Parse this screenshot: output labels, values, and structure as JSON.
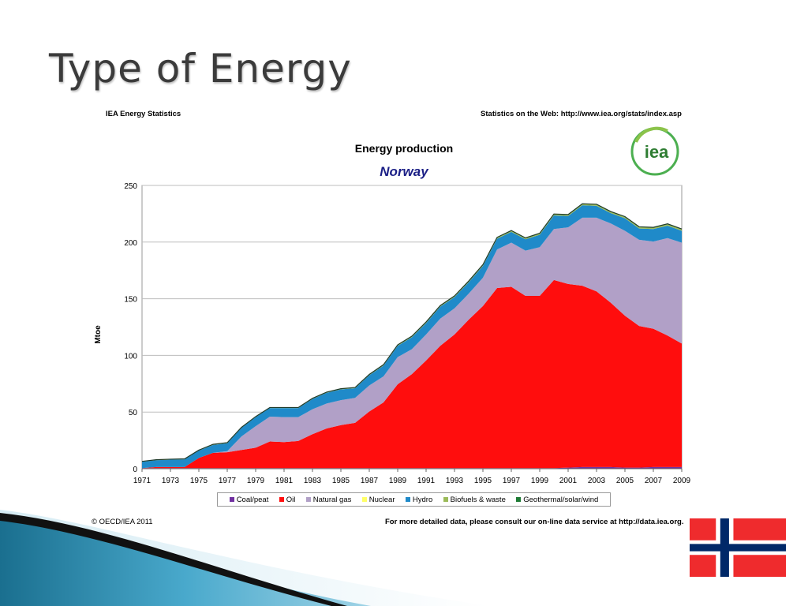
{
  "slide": {
    "title": "Type of Energy"
  },
  "header": {
    "left": "IEA Energy Statistics",
    "right": "Statistics on the Web: http://www.iea.org/stats/index.asp"
  },
  "logo": {
    "text": "iea"
  },
  "footer": {
    "left": "© OECD/IEA 2011",
    "right": "For more detailed data, please consult our on-line data service at http://data.iea.org."
  },
  "colors": {
    "coal": "#7030a0",
    "oil": "#ff0d0d",
    "gas": "#b1a0c7",
    "nuclear": "#ffff66",
    "hydro": "#1f8ac9",
    "biofuels": "#9bbb59",
    "geothermal": "#1e7b34",
    "flag_red": "#ef2b2d",
    "flag_blue": "#002868"
  },
  "chart_data": {
    "type": "area",
    "stacked": true,
    "title": "Energy production",
    "subtitle": "Norway",
    "ylabel": "Mtoe",
    "xlabel": "",
    "ylim": [
      0,
      250
    ],
    "yticks": [
      0,
      50,
      100,
      150,
      200,
      250
    ],
    "xticks": [
      "1971",
      "1973",
      "1975",
      "1977",
      "1979",
      "1981",
      "1983",
      "1985",
      "1987",
      "1989",
      "1991",
      "1993",
      "1995",
      "1997",
      "1999",
      "2001",
      "2003",
      "2005",
      "2007",
      "2009"
    ],
    "grid": true,
    "legend_position": "bottom",
    "x": [
      1971,
      1972,
      1973,
      1974,
      1975,
      1976,
      1977,
      1978,
      1979,
      1980,
      1981,
      1982,
      1983,
      1984,
      1985,
      1986,
      1987,
      1988,
      1989,
      1990,
      1991,
      1992,
      1993,
      1994,
      1995,
      1996,
      1997,
      1998,
      1999,
      2000,
      2001,
      2002,
      2003,
      2004,
      2005,
      2006,
      2007,
      2008,
      2009
    ],
    "series": [
      {
        "name": "Coal/peat",
        "color_key": "coal",
        "values": [
          0.5,
          0.5,
          0.5,
          0.5,
          0.5,
          0.5,
          0.5,
          0.5,
          0.5,
          0.5,
          0.5,
          0.5,
          0.5,
          0.5,
          0.5,
          0.5,
          0.5,
          0.5,
          0.5,
          0.5,
          0.5,
          0.5,
          0.5,
          0.5,
          0.5,
          0.5,
          0.5,
          0.5,
          0.5,
          0.5,
          1,
          1.5,
          1.5,
          1.5,
          1,
          1,
          1.5,
          1.5,
          1.5
        ]
      },
      {
        "name": "Oil",
        "color_key": "oil",
        "values": [
          0,
          1,
          1,
          1,
          9,
          13.5,
          14,
          16,
          18,
          23.5,
          23,
          24,
          30,
          35,
          38,
          40,
          50,
          58,
          74,
          83,
          95,
          108,
          118,
          131,
          143,
          159,
          160,
          152,
          152,
          166,
          162,
          160,
          155,
          145,
          134,
          125,
          122,
          116,
          109
        ]
      },
      {
        "name": "Natural gas",
        "color_key": "gas",
        "values": [
          0,
          0,
          0,
          0,
          0,
          0,
          1,
          12,
          19,
          22,
          22,
          21,
          22,
          22,
          22,
          22,
          23,
          23,
          24,
          22,
          23,
          24,
          23,
          23,
          25,
          34,
          39,
          40,
          43,
          45,
          50,
          60,
          65,
          70,
          75,
          76,
          77,
          86,
          89
        ]
      },
      {
        "name": "Nuclear",
        "color_key": "nuclear",
        "values": [
          0,
          0,
          0,
          0,
          0,
          0,
          0,
          0,
          0,
          0,
          0,
          0,
          0,
          0,
          0,
          0,
          0,
          0,
          0,
          0,
          0,
          0,
          0,
          0,
          0,
          0,
          0,
          0,
          0,
          0,
          0,
          0,
          0,
          0,
          0,
          0,
          0,
          0,
          0
        ]
      },
      {
        "name": "Hydro",
        "color_key": "hydro",
        "values": [
          5.6,
          6,
          6.5,
          6.8,
          6.5,
          7,
          7,
          7.5,
          8,
          7.5,
          8,
          8,
          9,
          9.5,
          9.5,
          8.5,
          9,
          9.5,
          10,
          10.5,
          10,
          10.5,
          10,
          10,
          10.5,
          9.5,
          9.5,
          10,
          11,
          12,
          10,
          11,
          10.5,
          9,
          11,
          10,
          11,
          11,
          10.5
        ]
      },
      {
        "name": "Biofuels & waste",
        "color_key": "biofuels",
        "values": [
          0.4,
          0.4,
          0.4,
          0.4,
          0.4,
          0.5,
          0.5,
          0.5,
          0.5,
          0.5,
          0.5,
          0.5,
          0.6,
          0.6,
          0.6,
          0.7,
          0.7,
          0.8,
          0.8,
          1,
          1,
          1,
          1,
          1.1,
          1.1,
          1.2,
          1.2,
          1.2,
          1.3,
          1.3,
          1.3,
          1.3,
          1.4,
          1.4,
          1.4,
          1.4,
          1.4,
          1.4,
          1.4
        ]
      },
      {
        "name": "Geothermal/solar/wind",
        "color_key": "geothermal",
        "values": [
          0,
          0,
          0,
          0,
          0,
          0,
          0,
          0,
          0,
          0,
          0,
          0,
          0,
          0,
          0,
          0,
          0,
          0,
          0,
          0,
          0,
          0,
          0,
          0,
          0,
          0,
          0,
          0,
          0,
          0,
          0,
          0,
          0,
          0.1,
          0.1,
          0.1,
          0.1,
          0.2,
          0.2
        ]
      }
    ]
  }
}
